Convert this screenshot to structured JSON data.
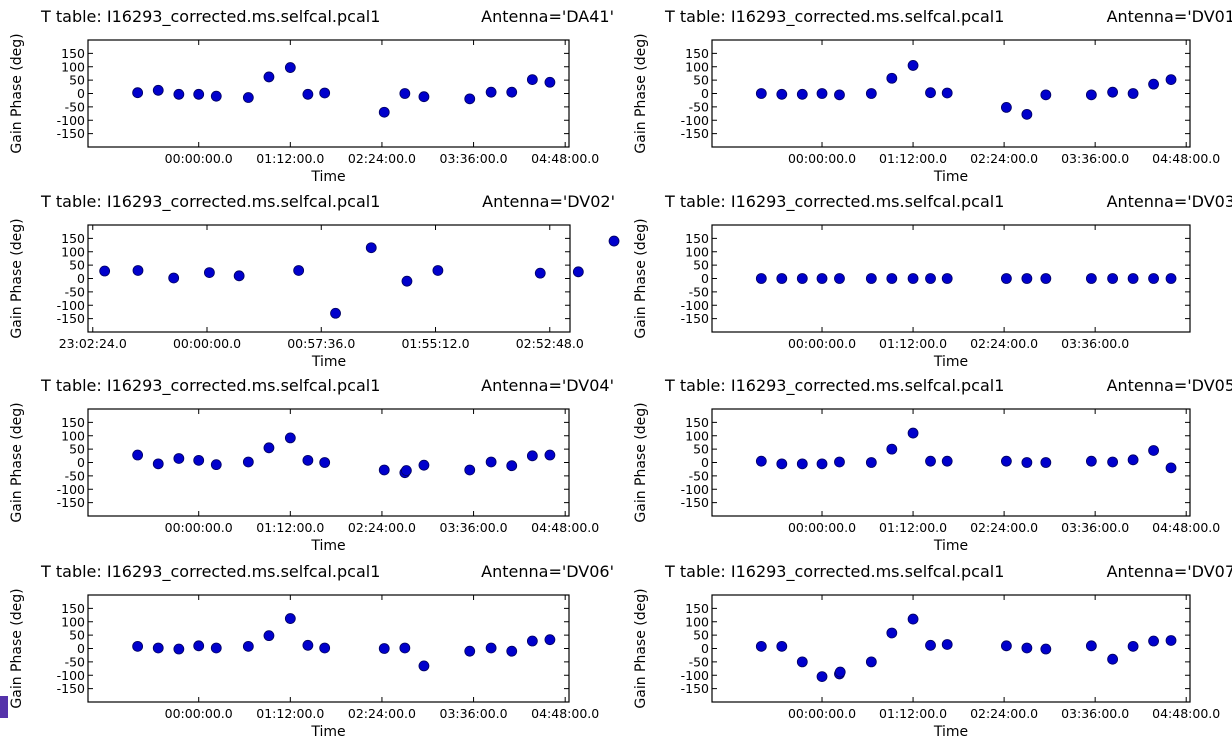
{
  "colors": {
    "marker": "#0000cc",
    "marker_edge": "#000060",
    "frame": "#000000"
  },
  "chart_data": [
    {
      "type": "scatter",
      "title_left": "T table: I16293_corrected.ms.selfcal.pcal1",
      "title_right": "Antenna='DA41'",
      "xlabel": "Time",
      "ylabel": "Gain Phase (deg)",
      "yticks": [
        "150",
        "100",
        "50",
        "0",
        "-50",
        "-100",
        "-150"
      ],
      "ylim": [
        -200,
        200
      ],
      "xlim": [
        -1.45,
        4.85
      ],
      "xticks": [
        {
          "pos": 0,
          "label": "00:00:00.0"
        },
        {
          "pos": 1.2,
          "label": "01:12:00.0"
        },
        {
          "pos": 2.4,
          "label": "02:24:00.0"
        },
        {
          "pos": 3.6,
          "label": "03:36:00.0"
        },
        {
          "pos": 4.8,
          "label": "04:48:00.0"
        }
      ],
      "x": [
        -0.8,
        -0.53,
        -0.26,
        0,
        0.23,
        0.65,
        0.92,
        1.2,
        1.43,
        1.65,
        2.43,
        2.7,
        2.95,
        3.55,
        3.83,
        4.1,
        4.37,
        4.6
      ],
      "y": [
        3,
        12,
        -3,
        -3,
        -10,
        -15,
        62,
        97,
        -3,
        2,
        -70,
        0,
        -12,
        -20,
        5,
        5,
        52,
        42
      ]
    },
    {
      "type": "scatter",
      "title_left": "T table: I16293_corrected.ms.selfcal.pcal1",
      "title_right": "Antenna='DV01",
      "xlabel": "Time",
      "ylabel": "Gain Phase (deg)",
      "yticks": [
        "150",
        "100",
        "50",
        "0",
        "-50",
        "-100",
        "-150"
      ],
      "ylim": [
        -200,
        200
      ],
      "xlim": [
        -1.45,
        4.85
      ],
      "xticks": [
        {
          "pos": 0,
          "label": "00:00:00.0"
        },
        {
          "pos": 1.2,
          "label": "01:12:00.0"
        },
        {
          "pos": 2.4,
          "label": "02:24:00.0"
        },
        {
          "pos": 3.6,
          "label": "03:36:00.0"
        },
        {
          "pos": 4.8,
          "label": "04:48:00.0"
        }
      ],
      "x": [
        -0.8,
        -0.53,
        -0.26,
        0,
        0.23,
        0.65,
        0.92,
        1.2,
        1.43,
        1.65,
        2.43,
        2.7,
        2.95,
        3.55,
        3.83,
        4.1,
        4.37,
        4.6
      ],
      "y": [
        0,
        -3,
        -3,
        0,
        -5,
        0,
        57,
        105,
        3,
        2,
        -52,
        -78,
        -5,
        -5,
        5,
        0,
        35,
        52
      ]
    },
    {
      "type": "scatter",
      "title_left": "T table: I16293_corrected.ms.selfcal.pcal1",
      "title_right": "Antenna='DV02'",
      "xlabel": "Time",
      "ylabel": "Gain Phase (deg)",
      "yticks": [
        "150",
        "100",
        "50",
        "0",
        "-50",
        "-100",
        "-150"
      ],
      "ylim": [
        -200,
        200
      ],
      "xlim": [
        -1.0,
        3.05
      ],
      "xticks": [
        {
          "pos": -0.96,
          "label": "23:02:24.0"
        },
        {
          "pos": 0,
          "label": "00:00:00.0"
        },
        {
          "pos": 0.96,
          "label": "00:57:36.0"
        },
        {
          "pos": 1.92,
          "label": "01:55:12.0"
        },
        {
          "pos": 2.88,
          "label": "02:52:48.0"
        }
      ],
      "x": [
        -0.86,
        -0.58,
        -0.28,
        0.02,
        0.27,
        0.77,
        1.08,
        1.38,
        1.68,
        1.94,
        2.8,
        3.12,
        3.42
      ],
      "y": [
        28,
        30,
        2,
        22,
        10,
        30,
        -130,
        115,
        -10,
        30,
        20,
        25,
        140
      ]
    },
    {
      "type": "scatter",
      "title_left": "T table: I16293_corrected.ms.selfcal.pcal1",
      "title_right": "Antenna='DV03",
      "xlabel": "Time",
      "ylabel": "Gain Phase (deg)",
      "yticks": [
        "150",
        "100",
        "50",
        "0",
        "-50",
        "-100",
        "-150"
      ],
      "ylim": [
        -200,
        200
      ],
      "xlim": [
        -1.45,
        4.85
      ],
      "xticks": [
        {
          "pos": 0,
          "label": "00:00:00.0"
        },
        {
          "pos": 1.2,
          "label": "01:12:00.0"
        },
        {
          "pos": 2.4,
          "label": "02:24:00.0"
        },
        {
          "pos": 3.6,
          "label": "03:36:00.0"
        }
      ],
      "x": [
        -0.8,
        -0.53,
        -0.26,
        0,
        0.23,
        0.65,
        0.92,
        1.2,
        1.43,
        1.65,
        2.43,
        2.7,
        2.95,
        3.55,
        3.83,
        4.1,
        4.37,
        4.6
      ],
      "y": [
        0,
        0,
        0,
        0,
        0,
        0,
        0,
        0,
        0,
        0,
        0,
        0,
        0,
        0,
        0,
        0,
        0,
        0
      ]
    },
    {
      "type": "scatter",
      "title_left": "T table: I16293_corrected.ms.selfcal.pcal1",
      "title_right": "Antenna='DV04'",
      "xlabel": "Time",
      "ylabel": "Gain Phase (deg)",
      "yticks": [
        "150",
        "100",
        "50",
        "0",
        "-50",
        "-100",
        "-150"
      ],
      "ylim": [
        -200,
        200
      ],
      "xlim": [
        -1.45,
        4.85
      ],
      "xticks": [
        {
          "pos": 0,
          "label": "00:00:00.0"
        },
        {
          "pos": 1.2,
          "label": "01:12:00.0"
        },
        {
          "pos": 2.4,
          "label": "02:24:00.0"
        },
        {
          "pos": 3.6,
          "label": "03:36:00.0"
        },
        {
          "pos": 4.8,
          "label": "04:48:00.0"
        }
      ],
      "x": [
        -0.8,
        -0.53,
        -0.26,
        0,
        0.23,
        0.65,
        0.92,
        1.2,
        1.43,
        1.65,
        2.43,
        2.7,
        2.72,
        2.95,
        3.55,
        3.83,
        4.1,
        4.37,
        4.6
      ],
      "y": [
        28,
        -5,
        15,
        8,
        -8,
        2,
        55,
        92,
        8,
        0,
        -28,
        -38,
        -30,
        -10,
        -28,
        2,
        -12,
        25,
        28
      ]
    },
    {
      "type": "scatter",
      "title_left": "T table: I16293_corrected.ms.selfcal.pcal1",
      "title_right": "Antenna='DV05",
      "xlabel": "Time",
      "ylabel": "Gain Phase (deg)",
      "yticks": [
        "150",
        "100",
        "50",
        "0",
        "-50",
        "-100",
        "-150"
      ],
      "ylim": [
        -200,
        200
      ],
      "xlim": [
        -1.45,
        4.85
      ],
      "xticks": [
        {
          "pos": 0,
          "label": "00:00:00.0"
        },
        {
          "pos": 1.2,
          "label": "01:12:00.0"
        },
        {
          "pos": 2.4,
          "label": "02:24:00.0"
        },
        {
          "pos": 3.6,
          "label": "03:36:00.0"
        },
        {
          "pos": 4.8,
          "label": "04:48:00.0"
        }
      ],
      "x": [
        -0.8,
        -0.53,
        -0.26,
        0,
        0.23,
        0.65,
        0.92,
        1.2,
        1.43,
        1.65,
        2.43,
        2.7,
        2.95,
        3.55,
        3.83,
        4.1,
        4.37,
        4.6
      ],
      "y": [
        5,
        -5,
        -5,
        -5,
        2,
        0,
        50,
        110,
        5,
        5,
        5,
        0,
        0,
        5,
        2,
        10,
        45,
        -20
      ]
    },
    {
      "type": "scatter",
      "title_left": "T table: I16293_corrected.ms.selfcal.pcal1",
      "title_right": "Antenna='DV06'",
      "xlabel": "Time",
      "ylabel": "Gain Phase (deg)",
      "yticks": [
        "150",
        "100",
        "50",
        "0",
        "-50",
        "-100",
        "-150"
      ],
      "ylim": [
        -200,
        200
      ],
      "xlim": [
        -1.45,
        4.85
      ],
      "xticks": [
        {
          "pos": 0,
          "label": "00:00:00.0"
        },
        {
          "pos": 1.2,
          "label": "01:12:00.0"
        },
        {
          "pos": 2.4,
          "label": "02:24:00.0"
        },
        {
          "pos": 3.6,
          "label": "03:36:00.0"
        },
        {
          "pos": 4.8,
          "label": "04:48:00.0"
        }
      ],
      "x": [
        -0.8,
        -0.53,
        -0.26,
        0,
        0.23,
        0.65,
        0.92,
        1.2,
        1.43,
        1.65,
        2.43,
        2.7,
        2.95,
        3.55,
        3.83,
        4.1,
        4.37,
        4.6
      ],
      "y": [
        8,
        2,
        -2,
        10,
        2,
        8,
        48,
        112,
        12,
        2,
        0,
        2,
        -65,
        -10,
        2,
        -10,
        28,
        33
      ]
    },
    {
      "type": "scatter",
      "title_left": "T table: I16293_corrected.ms.selfcal.pcal1",
      "title_right": "Antenna='DV07",
      "xlabel": "Time",
      "ylabel": "Gain Phase (deg)",
      "yticks": [
        "150",
        "100",
        "50",
        "0",
        "-50",
        "-100",
        "-150"
      ],
      "ylim": [
        -200,
        200
      ],
      "xlim": [
        -1.45,
        4.85
      ],
      "xticks": [
        {
          "pos": 0,
          "label": "00:00:00.0"
        },
        {
          "pos": 1.2,
          "label": "01:12:00.0"
        },
        {
          "pos": 2.4,
          "label": "02:24:00.0"
        },
        {
          "pos": 3.6,
          "label": "03:36:00.0"
        },
        {
          "pos": 4.8,
          "label": "04:48:00.0"
        }
      ],
      "x": [
        -0.8,
        -0.53,
        -0.26,
        0,
        0.23,
        0.24,
        0.65,
        0.92,
        1.2,
        1.43,
        1.65,
        2.43,
        2.7,
        2.95,
        3.55,
        3.83,
        4.1,
        4.37,
        4.6
      ],
      "y": [
        8,
        8,
        -50,
        -105,
        -95,
        -88,
        -50,
        58,
        110,
        12,
        15,
        10,
        2,
        -2,
        10,
        -40,
        8,
        28,
        30
      ]
    }
  ]
}
